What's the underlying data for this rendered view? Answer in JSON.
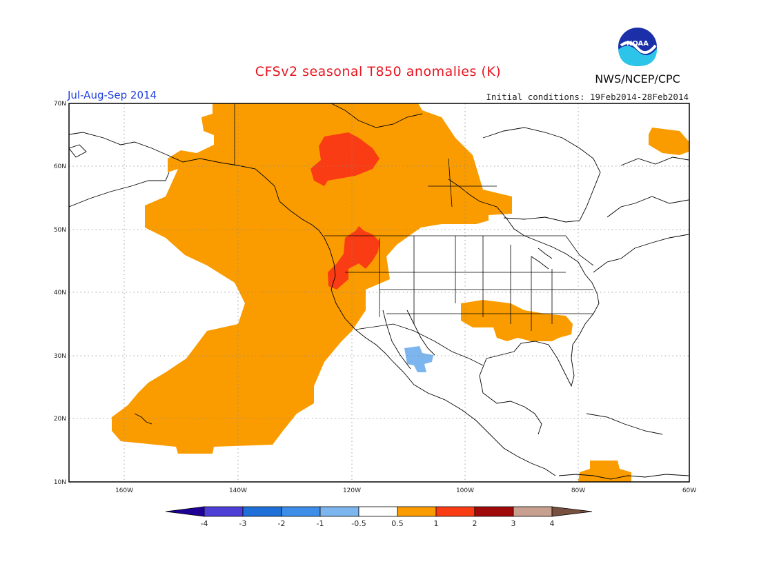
{
  "header": {
    "title": "CFSv2 seasonal T850 anomalies (K)",
    "period": "Jul-Aug-Sep 2014",
    "initial_conditions": "Initial conditions: 19Feb2014-28Feb2014",
    "agency": "NWS/NCEP/CPC",
    "logo_text": "NOAA"
  },
  "map": {
    "lon_range": [
      -172,
      -60
    ],
    "lat_range": [
      10,
      70
    ],
    "lat_labels": [
      "10N",
      "20N",
      "30N",
      "40N",
      "50N",
      "60N",
      "70N"
    ],
    "lon_labels": [
      "160W",
      "140W",
      "120W",
      "100W",
      "80W",
      "60W"
    ],
    "anomaly_regions": [
      {
        "level": "0.5-1",
        "region": "Alaska, Canada and Northeast Pacific"
      },
      {
        "level": "1-2",
        "region": "Northwestern Canada"
      },
      {
        "level": "1-2",
        "region": "Pacific Northwest"
      },
      {
        "level": "0.5-1",
        "region": "Southern Plains and Southeast US"
      },
      {
        "level": "0.5-1",
        "region": "Labrador"
      },
      {
        "level": "0.5-1",
        "region": "Caribbean / northern South America"
      },
      {
        "level": "-1--0.5",
        "region": "Northwestern Mexico"
      }
    ]
  },
  "colorbar": {
    "labels": [
      "-4",
      "-3",
      "-2",
      "-1",
      "-0.5",
      "0.5",
      "1",
      "2",
      "3",
      "4"
    ],
    "colors": [
      "#1e0096",
      "#4d3ed6",
      "#1f6fd8",
      "#3d8ee8",
      "#7db6ee",
      "#ffffff",
      "#fa9c00",
      "#fa3c14",
      "#a00a0a",
      "#c8a090",
      "#785040"
    ]
  }
}
